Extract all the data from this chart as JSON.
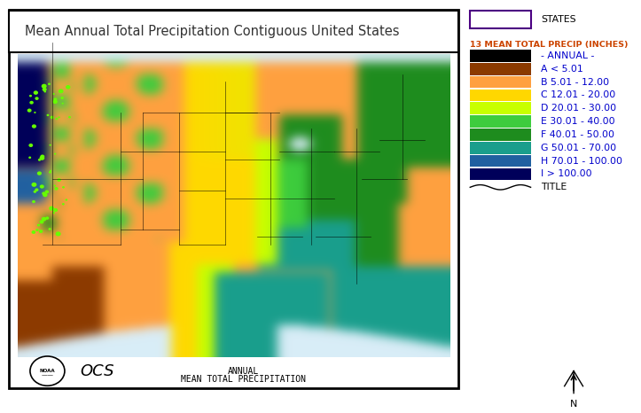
{
  "title": "Mean Annual Total Precipitation Contiguous United States",
  "map_label_line1": "ANNUAL",
  "map_label_line2": "MEAN TOTAL PRECIPITATION",
  "legend_header_states": "STATES",
  "legend_header_precip": "13 MEAN TOTAL PRECIP (INCHES)",
  "legend_entries": [
    {
      "label": "- ANNUAL -",
      "color": "#000000"
    },
    {
      "label": "A < 5.01",
      "color": "#8B3A00"
    },
    {
      "label": "B 5.01 - 12.00",
      "color": "#FFA040"
    },
    {
      "label": "C 12.01 - 20.00",
      "color": "#FFD700"
    },
    {
      "label": "D 20.01 - 30.00",
      "color": "#C8FF00"
    },
    {
      "label": "E 30.01 - 40.00",
      "color": "#3DCC3D"
    },
    {
      "label": "F 40.01 - 50.00",
      "color": "#1E8C1E"
    },
    {
      "label": "G 50.01 - 70.00",
      "color": "#1A9E8C"
    },
    {
      "label": "H 70.01 - 100.00",
      "color": "#2060A0"
    },
    {
      "label": "I > 100.00",
      "color": "#00005A"
    }
  ],
  "states_border_color": "#4B0082",
  "title_fontsize": 10.5,
  "legend_fontsize": 7.8,
  "legend_label_color": "#0000CC",
  "legend_header_color": "#CC4400",
  "bg_color": "#FFFFFF"
}
